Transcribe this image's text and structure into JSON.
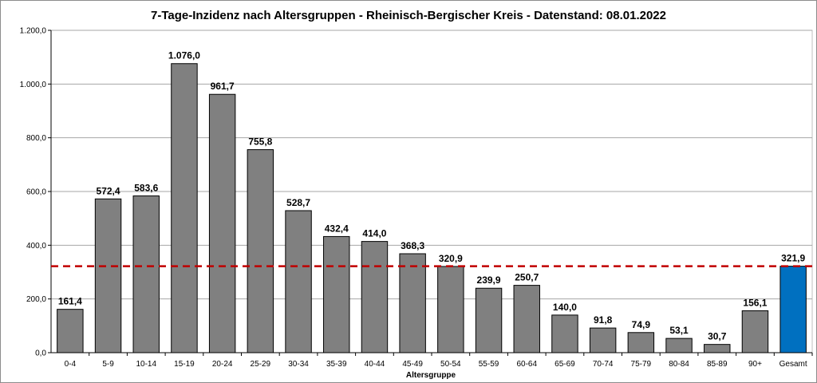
{
  "chart_data": {
    "type": "bar",
    "title": "7-Tage-Inzidenz nach Altersgruppen - Rheinisch-Bergischer Kreis - Datenstand: 08.01.2022",
    "xlabel": "Altersgruppe",
    "ylabel": "",
    "ylim": [
      0,
      1200
    ],
    "yticks": [
      0,
      200,
      400,
      600,
      800,
      1000,
      1200
    ],
    "ytick_labels": [
      "0,0",
      "200,0",
      "400,0",
      "600,0",
      "800,0",
      "1.000,0",
      "1.200,0"
    ],
    "grid": true,
    "categories": [
      "0-4",
      "5-9",
      "10-14",
      "15-19",
      "20-24",
      "25-29",
      "30-34",
      "35-39",
      "40-44",
      "45-49",
      "50-54",
      "55-59",
      "60-64",
      "65-69",
      "70-74",
      "75-79",
      "80-84",
      "85-89",
      "90+",
      "Gesamt"
    ],
    "values": [
      161.4,
      572.4,
      583.6,
      1076.0,
      961.7,
      755.8,
      528.7,
      432.4,
      414.0,
      368.3,
      320.9,
      239.9,
      250.7,
      140.0,
      91.8,
      74.9,
      53.1,
      30.7,
      156.1,
      321.9
    ],
    "value_labels": [
      "161,4",
      "572,4",
      "583,6",
      "1.076,0",
      "961,7",
      "755,8",
      "528,7",
      "432,4",
      "414,0",
      "368,3",
      "320,9",
      "239,9",
      "250,7",
      "140,0",
      "91,8",
      "74,9",
      "53,1",
      "30,7",
      "156,1",
      "321,9"
    ],
    "reference_line": {
      "value": 321.9,
      "style": "dashed",
      "color": "#c00000"
    },
    "colors": {
      "bar": "#808080",
      "highlight_bar": "#0070c0",
      "bar_border": "#000000"
    },
    "highlight_category": "Gesamt"
  }
}
